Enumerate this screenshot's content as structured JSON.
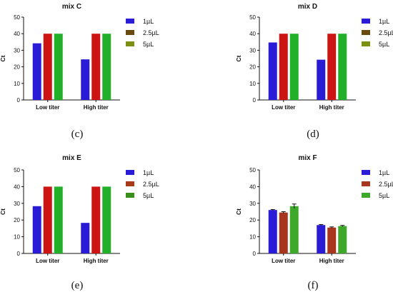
{
  "chart_data": [
    {
      "type": "bar",
      "panel_letter": "(c)",
      "title": "mix C",
      "ylabel": "Ct",
      "xlabel": "",
      "ylim": [
        0,
        50
      ],
      "yticks": [
        0,
        10,
        20,
        30,
        40,
        50
      ],
      "categories": [
        "Low titer",
        "High titer"
      ],
      "series": [
        {
          "name": "1µL",
          "color": "#2a1bd6",
          "values": [
            34.2,
            24.5
          ],
          "errors": [
            0,
            0
          ]
        },
        {
          "name": "2.5µL",
          "color": "#cc1414",
          "values": [
            40,
            40
          ],
          "errors": [
            0,
            0
          ]
        },
        {
          "name": "5µL",
          "color": "#22b02a",
          "values": [
            40,
            40
          ],
          "errors": [
            0,
            0
          ]
        }
      ],
      "legend_colors": [
        "#2a1bd6",
        "#6b4a10",
        "#7c8f12"
      ],
      "legend": "top-right",
      "grid": false
    },
    {
      "type": "bar",
      "panel_letter": "(d)",
      "title": "mix D",
      "ylabel": "Ct",
      "xlabel": "",
      "ylim": [
        0,
        50
      ],
      "yticks": [
        0,
        10,
        20,
        30,
        40,
        50
      ],
      "categories": [
        "Low titer",
        "High titer"
      ],
      "series": [
        {
          "name": "1µL",
          "color": "#2a1bd6",
          "values": [
            34.7,
            24.3
          ],
          "errors": [
            0,
            0
          ]
        },
        {
          "name": "2.5µL",
          "color": "#cc1414",
          "values": [
            40,
            40
          ],
          "errors": [
            0,
            0
          ]
        },
        {
          "name": "5µL",
          "color": "#22b02a",
          "values": [
            40,
            40
          ],
          "errors": [
            0,
            0
          ]
        }
      ],
      "legend_colors": [
        "#2a1bd6",
        "#6b4a10",
        "#7c8f12"
      ],
      "legend": "top-right",
      "grid": false
    },
    {
      "type": "bar",
      "panel_letter": "(e)",
      "title": "mix E",
      "ylabel": "Ct",
      "xlabel": "",
      "ylim": [
        0,
        50
      ],
      "yticks": [
        0,
        10,
        20,
        30,
        40,
        50
      ],
      "categories": [
        "Low titer",
        "High titer"
      ],
      "series": [
        {
          "name": "1µL",
          "color": "#2a1bd6",
          "values": [
            28.3,
            18.3
          ],
          "errors": [
            0,
            0
          ]
        },
        {
          "name": "2.5µL",
          "color": "#cc1414",
          "values": [
            40,
            40
          ],
          "errors": [
            0,
            0
          ]
        },
        {
          "name": "5µL",
          "color": "#22b02a",
          "values": [
            40,
            40
          ],
          "errors": [
            0,
            0
          ]
        }
      ],
      "legend_colors": [
        "#2a1bd6",
        "#a83a1a",
        "#3a8f1a"
      ],
      "legend": "top-right",
      "grid": false
    },
    {
      "type": "bar",
      "panel_letter": "(f)",
      "title": "mix F",
      "ylabel": "Ct",
      "xlabel": "",
      "ylim": [
        0,
        50
      ],
      "yticks": [
        0,
        10,
        20,
        30,
        40,
        50
      ],
      "categories": [
        "Low titer",
        "High titer"
      ],
      "series": [
        {
          "name": "1µL",
          "color": "#2a1bd6",
          "values": [
            26.0,
            17.0
          ],
          "errors": [
            0.3,
            0.3
          ]
        },
        {
          "name": "2.5µL",
          "color": "#a8361e",
          "values": [
            24.5,
            15.5
          ],
          "errors": [
            0.5,
            0.4
          ]
        },
        {
          "name": "5µL",
          "color": "#3ea82a",
          "values": [
            28.3,
            16.4
          ],
          "errors": [
            1.3,
            0.4
          ]
        }
      ],
      "legend_colors": [
        "#2a1bd6",
        "#a8361e",
        "#3ea82a"
      ],
      "legend": "top-right",
      "grid": false
    }
  ]
}
